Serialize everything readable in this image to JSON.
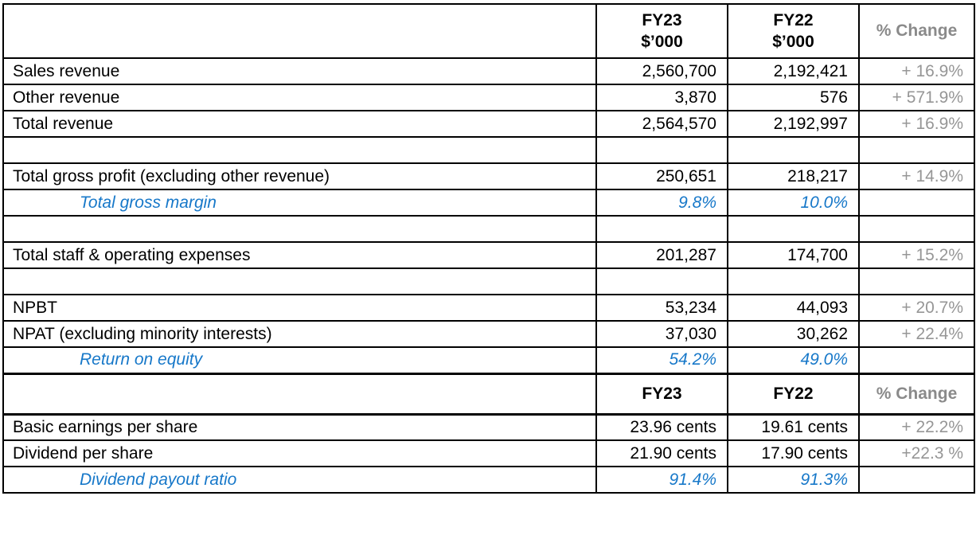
{
  "colors": {
    "accent_blue": "#1778c9",
    "change_gray": "#969696",
    "header_gray": "#8a8a8a",
    "border_black": "#000000"
  },
  "header1": {
    "label": "",
    "fy23": {
      "line1": "FY23",
      "line2": "$’000"
    },
    "fy22": {
      "line1": "FY22",
      "line2": "$’000"
    },
    "change": "% Change"
  },
  "header2": {
    "label": "",
    "fy23": "FY23",
    "fy22": "FY22",
    "change": "% Change"
  },
  "sections": {
    "upper": [
      {
        "type": "data",
        "label": "Sales revenue",
        "fy23": "2,560,700",
        "fy22": "2,192,421",
        "change": "+ 16.9%"
      },
      {
        "type": "data",
        "label": "Other revenue",
        "fy23": "3,870",
        "fy22": "576",
        "change": "+ 571.9%"
      },
      {
        "type": "data",
        "label": "Total revenue",
        "fy23": "2,564,570",
        "fy22": "2,192,997",
        "change": "+ 16.9%"
      },
      {
        "type": "blank",
        "label": "",
        "fy23": "",
        "fy22": "",
        "change": ""
      },
      {
        "type": "data",
        "label": "Total gross profit (excluding other revenue)",
        "fy23": "250,651",
        "fy22": "218,217",
        "change": "+ 14.9%"
      },
      {
        "type": "metric",
        "label": "Total gross margin",
        "fy23": "9.8%",
        "fy22": "10.0%",
        "change": ""
      },
      {
        "type": "blank",
        "label": "",
        "fy23": "",
        "fy22": "",
        "change": ""
      },
      {
        "type": "data",
        "label": "Total staff & operating expenses",
        "fy23": "201,287",
        "fy22": "174,700",
        "change": "+ 15.2%"
      },
      {
        "type": "blank",
        "label": "",
        "fy23": "",
        "fy22": "",
        "change": ""
      },
      {
        "type": "data",
        "label": "NPBT",
        "fy23": "53,234",
        "fy22": "44,093",
        "change": "+ 20.7%"
      },
      {
        "type": "data",
        "label": "NPAT (excluding minority interests)",
        "fy23": "37,030",
        "fy22": "30,262",
        "change": "+ 22.4%"
      },
      {
        "type": "metric",
        "label": "Return on equity",
        "fy23": "54.2%",
        "fy22": "49.0%",
        "change": ""
      }
    ],
    "lower": [
      {
        "type": "data",
        "label": "Basic earnings per share",
        "fy23": "23.96 cents",
        "fy22": "19.61 cents",
        "change": "+ 22.2%"
      },
      {
        "type": "data",
        "label": "Dividend per share",
        "fy23": "21.90 cents",
        "fy22": "17.90 cents",
        "change": "+22.3 %"
      },
      {
        "type": "metric",
        "label": "Dividend payout ratio",
        "fy23": "91.4%",
        "fy22": "91.3%",
        "change": ""
      }
    ]
  }
}
